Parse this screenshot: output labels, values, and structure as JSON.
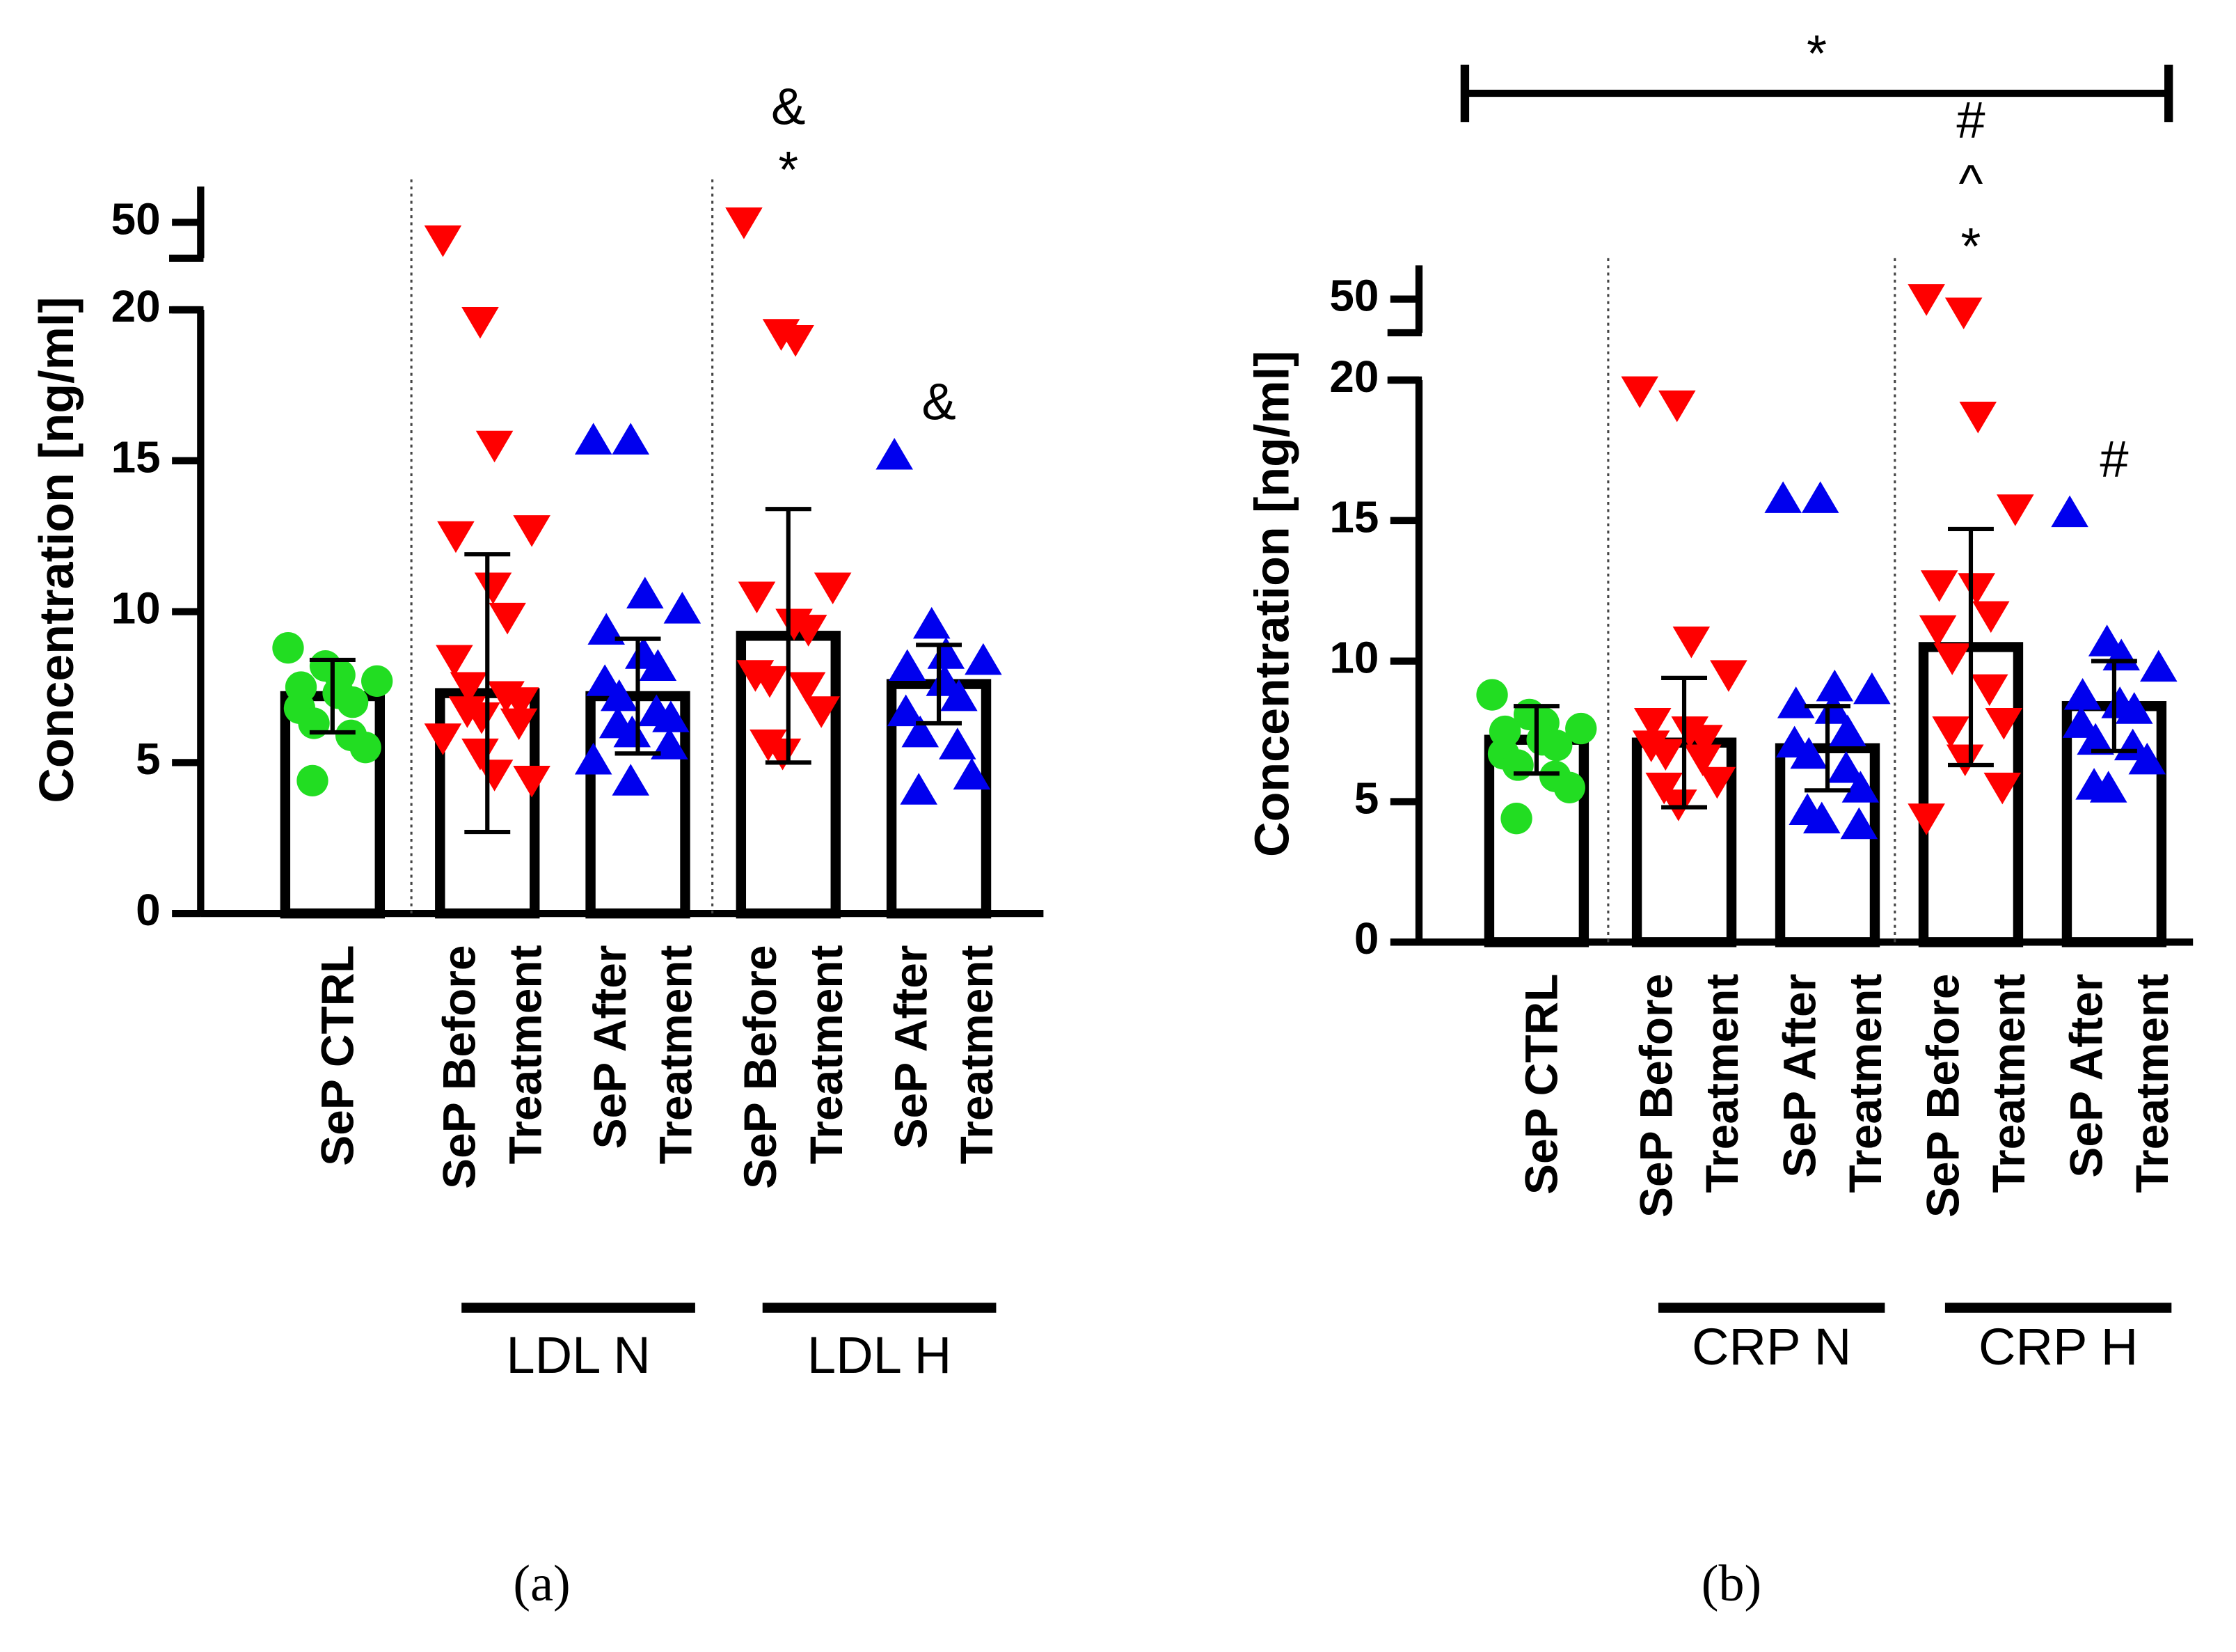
{
  "chart_data": [
    {
      "type": "bar",
      "panel_label": "(a)",
      "ylabel": "Concentration [ng/ml]",
      "categories": [
        [
          "SeP CTRL"
        ],
        [
          "SeP Before",
          "Treatment"
        ],
        [
          "SeP After",
          "Treatment"
        ],
        [
          "SeP Before",
          "Treatment"
        ],
        [
          "SeP After",
          "Treatment"
        ]
      ],
      "values": [
        7.2,
        7.3,
        7.2,
        9.2,
        7.6
      ],
      "errors": [
        1.2,
        4.6,
        1.9,
        4.2,
        1.3
      ],
      "colors": [
        "#22dd22",
        "#ff0000",
        "#0000ee",
        "#ff0000",
        "#0000ee"
      ],
      "markers": [
        "circle",
        "triangle-down",
        "triangle-up",
        "triangle-down",
        "triangle-up"
      ],
      "points": [
        [
          8.8,
          8.2,
          7.9,
          7.7,
          7.5,
          7.3,
          7.0,
          6.8,
          6.3,
          5.9,
          5.5,
          4.4
        ],
        [
          45,
          19.6,
          15.5,
          12.7,
          12.5,
          10.8,
          9.8,
          8.4,
          7.5,
          7.2,
          7.0,
          6.7,
          6.5,
          6.3,
          5.8,
          5.3,
          4.6,
          4.4
        ],
        [
          15.7,
          15.7,
          10.6,
          10.1,
          9.4,
          8.6,
          8.2,
          7.7,
          7.2,
          6.7,
          6.5,
          6.3,
          6.0,
          5.6,
          5.1,
          4.4
        ],
        [
          50,
          19.2,
          19.0,
          10.8,
          10.5,
          9.6,
          9.4,
          7.9,
          7.7,
          7.5,
          6.7,
          5.6,
          5.3
        ],
        [
          15.2,
          9.6,
          8.6,
          8.4,
          8.2,
          7.7,
          7.2,
          6.7,
          6.0,
          5.6,
          4.6,
          4.1
        ]
      ],
      "ylim": [
        0,
        20
      ],
      "yticks": [
        0,
        5,
        10,
        15,
        20
      ],
      "ybreak": {
        "ylim": [
          40,
          60
        ],
        "yticks": [
          50
        ]
      },
      "groups": [
        {
          "label": "LDL N",
          "from": 1,
          "to": 2
        },
        {
          "label": "LDL H",
          "from": 3,
          "to": 4
        }
      ],
      "annotations": [
        {
          "category": 3,
          "marks": [
            "*",
            "&"
          ]
        },
        {
          "category": 4,
          "marks": [
            "&"
          ]
        }
      ]
    },
    {
      "type": "bar",
      "panel_label": "(b)",
      "ylabel": "Concentration [ng/ml]",
      "categories": [
        [
          "SeP CTRL"
        ],
        [
          "SeP Before",
          "Treatment"
        ],
        [
          "SeP After",
          "Treatment"
        ],
        [
          "SeP Before",
          "Treatment"
        ],
        [
          "SeP After",
          "Treatment"
        ]
      ],
      "values": [
        7.2,
        7.1,
        6.9,
        10.5,
        8.4
      ],
      "errors": [
        1.2,
        2.3,
        1.5,
        4.2,
        1.6
      ],
      "colors": [
        "#22dd22",
        "#ff0000",
        "#0000ee",
        "#ff0000",
        "#0000ee"
      ],
      "markers": [
        "circle",
        "triangle-down",
        "triangle-up",
        "triangle-down",
        "triangle-up"
      ],
      "points": [
        [
          8.8,
          8.1,
          7.8,
          7.6,
          7.5,
          7.2,
          7.0,
          6.7,
          6.3,
          5.9,
          5.5,
          4.4
        ],
        [
          19.6,
          19.1,
          10.7,
          9.5,
          7.8,
          7.5,
          7.2,
          7.0,
          6.7,
          6.5,
          5.7,
          5.5,
          4.9
        ],
        [
          15.8,
          15.8,
          9.1,
          9.0,
          8.5,
          8.3,
          7.5,
          7.1,
          6.7,
          6.2,
          5.5,
          4.7,
          4.4,
          4.2
        ],
        [
          50,
          46,
          18.7,
          15.4,
          12.7,
          12.6,
          11.6,
          11.1,
          10.1,
          9.0,
          7.8,
          7.5,
          6.5,
          5.5,
          4.4
        ],
        [
          15.3,
          10.7,
          10.2,
          9.8,
          8.8,
          8.5,
          8.3,
          7.8,
          7.2,
          7.0,
          6.5,
          5.6,
          5.5
        ]
      ],
      "ylim": [
        0,
        20
      ],
      "yticks": [
        0,
        5,
        10,
        15,
        20
      ],
      "ybreak": {
        "ylim": [
          40,
          60
        ],
        "yticks": [
          50
        ]
      },
      "groups": [
        {
          "label": "CRP N",
          "from": 1,
          "to": 2
        },
        {
          "label": "CRP H",
          "from": 3,
          "to": 4
        }
      ],
      "annotations": [
        {
          "category": 3,
          "marks": [
            "*",
            "^",
            "#"
          ]
        },
        {
          "category": 4,
          "marks": [
            "#"
          ]
        }
      ],
      "bracket": {
        "text": "*",
        "from": 0,
        "to": 4
      }
    }
  ]
}
